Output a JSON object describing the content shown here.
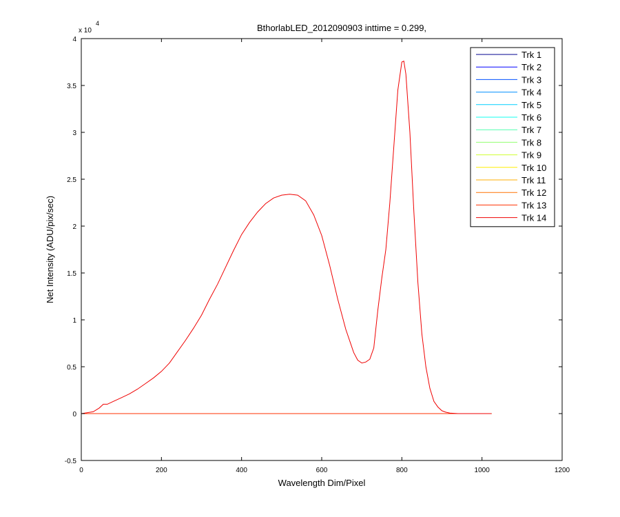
{
  "chart_data": {
    "type": "line",
    "title": "BthorlabLED_2012090903 inttime = 0.299,",
    "xlabel": "Wavelength Dim/Pixel",
    "ylabel": "Net Intensity (ADU/pix/sec)",
    "y_multiplier": {
      "base": "x 10",
      "exponent": "4"
    },
    "xlim": [
      0,
      1200
    ],
    "ylim": [
      -0.5,
      4
    ],
    "xticks": [
      0,
      200,
      400,
      600,
      800,
      1000,
      1200
    ],
    "xtick_labels": [
      "0",
      "200",
      "400",
      "600",
      "800",
      "1000",
      "1200"
    ],
    "yticks": [
      -0.5,
      0,
      0.5,
      1,
      1.5,
      2,
      2.5,
      3,
      3.5,
      4
    ],
    "ytick_labels": [
      "-0.5",
      "0",
      "0.5",
      "1",
      "1.5",
      "2",
      "2.5",
      "3",
      "3.5",
      "4"
    ],
    "grid": false,
    "legend_position": "top-right",
    "series": [
      {
        "name": "Trk 1",
        "color": "#00008f",
        "x": [
          0,
          1024
        ],
        "y": [
          0,
          0
        ]
      },
      {
        "name": "Trk 2",
        "color": "#0000ff",
        "x": [
          0,
          1024
        ],
        "y": [
          0,
          0
        ]
      },
      {
        "name": "Trk 3",
        "color": "#0050ff",
        "x": [
          0,
          1024
        ],
        "y": [
          0,
          0
        ]
      },
      {
        "name": "Trk 4",
        "color": "#0090ff",
        "x": [
          0,
          1024
        ],
        "y": [
          0,
          0
        ]
      },
      {
        "name": "Trk 5",
        "color": "#00cfff",
        "x": [
          0,
          1024
        ],
        "y": [
          0,
          0
        ]
      },
      {
        "name": "Trk 6",
        "color": "#10ffef",
        "x": [
          0,
          1024
        ],
        "y": [
          0,
          0
        ]
      },
      {
        "name": "Trk 7",
        "color": "#50ffaf",
        "x": [
          0,
          1024
        ],
        "y": [
          0,
          0
        ]
      },
      {
        "name": "Trk 8",
        "color": "#90ff6f",
        "x": [
          0,
          1024
        ],
        "y": [
          0,
          0
        ]
      },
      {
        "name": "Trk 9",
        "color": "#cfff30",
        "x": [
          0,
          1024
        ],
        "y": [
          0,
          0
        ]
      },
      {
        "name": "Trk 10",
        "color": "#ffef00",
        "x": [
          0,
          1024
        ],
        "y": [
          0,
          0
        ]
      },
      {
        "name": "Trk 11",
        "color": "#ffaf00",
        "x": [
          0,
          1024
        ],
        "y": [
          0,
          0
        ]
      },
      {
        "name": "Trk 12",
        "color": "#ff7000",
        "x": [
          0,
          1024
        ],
        "y": [
          0,
          0
        ]
      },
      {
        "name": "Trk 13",
        "color": "#ff3000",
        "x": [
          0,
          1024
        ],
        "y": [
          0,
          0
        ]
      },
      {
        "name": "Trk 14",
        "color": "#ef0000",
        "x": [
          0,
          30,
          45,
          55,
          65,
          80,
          100,
          120,
          140,
          160,
          180,
          200,
          220,
          240,
          260,
          280,
          300,
          320,
          340,
          360,
          380,
          400,
          420,
          440,
          460,
          480,
          500,
          520,
          540,
          560,
          580,
          600,
          620,
          640,
          660,
          680,
          690,
          700,
          710,
          720,
          730,
          740,
          750,
          760,
          770,
          780,
          790,
          800,
          805,
          810,
          820,
          830,
          840,
          850,
          860,
          870,
          880,
          890,
          900,
          910,
          920,
          940,
          960,
          1000,
          1024
        ],
        "y": [
          0,
          0.02,
          0.06,
          0.1,
          0.1,
          0.13,
          0.17,
          0.21,
          0.26,
          0.32,
          0.38,
          0.45,
          0.54,
          0.66,
          0.78,
          0.91,
          1.05,
          1.22,
          1.38,
          1.56,
          1.74,
          1.91,
          2.04,
          2.15,
          2.24,
          2.3,
          2.33,
          2.34,
          2.33,
          2.27,
          2.12,
          1.9,
          1.58,
          1.22,
          0.9,
          0.65,
          0.57,
          0.54,
          0.55,
          0.58,
          0.7,
          1.1,
          1.45,
          1.75,
          2.25,
          2.85,
          3.45,
          3.75,
          3.76,
          3.62,
          3.0,
          2.15,
          1.4,
          0.85,
          0.5,
          0.27,
          0.13,
          0.07,
          0.03,
          0.015,
          0.005,
          0,
          0,
          0,
          0
        ]
      }
    ]
  }
}
